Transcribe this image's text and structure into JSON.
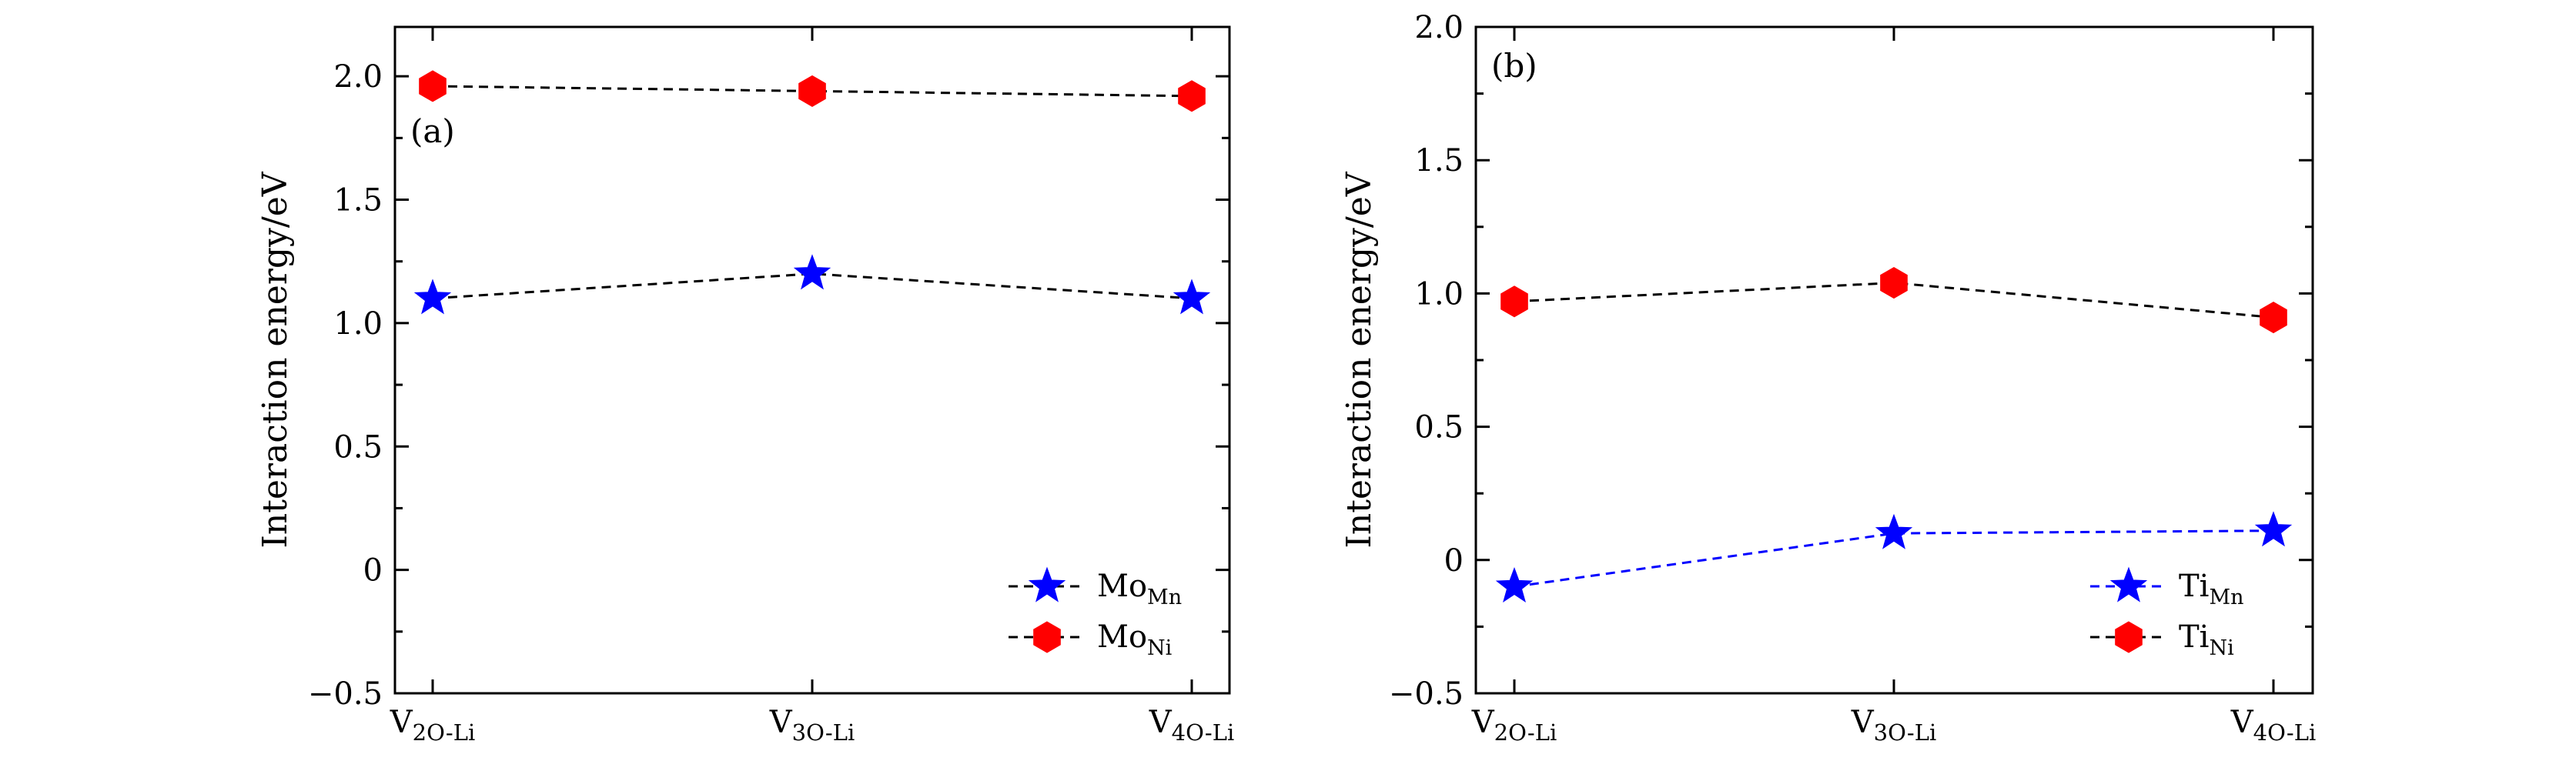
{
  "chart_data": [
    {
      "panel_label": "(a)",
      "type": "line",
      "ylabel": "Interaction energy/eV",
      "ylim": [
        -0.5,
        2.2
      ],
      "yticks": [
        -0.5,
        0,
        0.5,
        1.0,
        1.5,
        2.0
      ],
      "ytick_labels": [
        "−0.5",
        "0",
        "0.5",
        "1.0",
        "1.5",
        "2.0"
      ],
      "categories": [
        {
          "main": "V",
          "sub": "2O-Li"
        },
        {
          "main": "V",
          "sub": "3O-Li"
        },
        {
          "main": "V",
          "sub": "4O-Li"
        }
      ],
      "legend_position": "bottom-right",
      "series": [
        {
          "name": "Mo",
          "name_sub": "Mn",
          "marker": "star",
          "color": "#0000ff",
          "line_color": "#000000",
          "values": [
            1.1,
            1.2,
            1.1
          ]
        },
        {
          "name": "Mo",
          "name_sub": "Ni",
          "marker": "hexagon",
          "color": "#ff0000",
          "line_color": "#000000",
          "values": [
            1.96,
            1.94,
            1.92
          ]
        }
      ]
    },
    {
      "panel_label": "(b)",
      "type": "line",
      "ylabel": "Interaction energy/eV",
      "ylim": [
        -0.5,
        2.0
      ],
      "yticks": [
        -0.5,
        0,
        0.5,
        1.0,
        1.5,
        2.0
      ],
      "ytick_labels": [
        "−0.5",
        "0",
        "0.5",
        "1.0",
        "1.5",
        "2.0"
      ],
      "categories": [
        {
          "main": "V",
          "sub": "2O-Li"
        },
        {
          "main": "V",
          "sub": "3O-Li"
        },
        {
          "main": "V",
          "sub": "4O-Li"
        }
      ],
      "legend_position": "bottom-right",
      "series": [
        {
          "name": "Ti",
          "name_sub": "Mn",
          "marker": "star",
          "color": "#0000ff",
          "line_color": "#0000ff",
          "values": [
            -0.1,
            0.1,
            0.11
          ]
        },
        {
          "name": "Ti",
          "name_sub": "Ni",
          "marker": "hexagon",
          "color": "#ff0000",
          "line_color": "#000000",
          "values": [
            0.97,
            1.04,
            0.91
          ]
        }
      ]
    }
  ]
}
